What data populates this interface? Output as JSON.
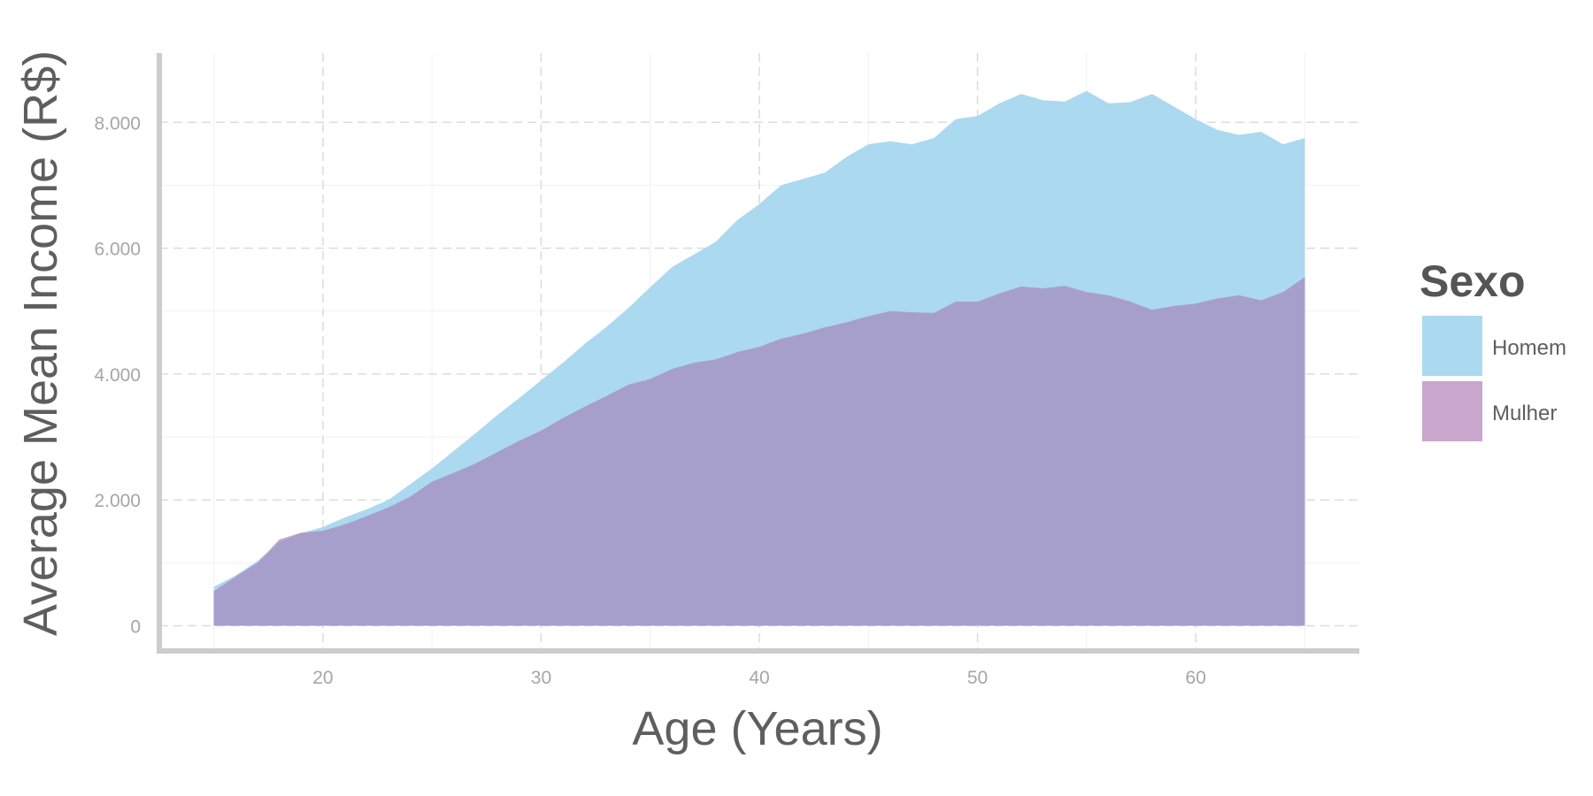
{
  "chart_data": {
    "type": "area",
    "xlabel": "Age (Years)",
    "ylabel": "Average Mean Income (R$)",
    "xlim": [
      12.5,
      67.5
    ],
    "ylim": [
      -400,
      9100
    ],
    "x_ticks": [
      20,
      30,
      40,
      50,
      60
    ],
    "y_ticks": [
      0,
      2000,
      4000,
      6000,
      8000
    ],
    "y_tick_labels": [
      "0",
      "2.000",
      "4.000",
      "6.000",
      "8.000"
    ],
    "grid": true,
    "legend": {
      "title": "Sexo",
      "position": "right"
    },
    "x": [
      15,
      16,
      17,
      18,
      19,
      20,
      21,
      22,
      23,
      24,
      25,
      26,
      27,
      28,
      29,
      30,
      31,
      32,
      33,
      34,
      35,
      36,
      37,
      38,
      39,
      40,
      41,
      42,
      43,
      44,
      45,
      46,
      47,
      48,
      49,
      50,
      51,
      52,
      53,
      54,
      55,
      56,
      57,
      58,
      59,
      60,
      61,
      62,
      63,
      64,
      65
    ],
    "series": [
      {
        "name": "Homem",
        "color": "#abd9ef",
        "values": [
          620,
          800,
          1030,
          1330,
          1470,
          1570,
          1720,
          1850,
          2000,
          2250,
          2500,
          2780,
          3060,
          3350,
          3620,
          3900,
          4180,
          4480,
          4750,
          5050,
          5380,
          5700,
          5900,
          6100,
          6450,
          6700,
          7000,
          7100,
          7200,
          7450,
          7650,
          7700,
          7650,
          7750,
          8050,
          8100,
          8300,
          8450,
          8350,
          8330,
          8500,
          8300,
          8320,
          8450,
          8250,
          8050,
          7880,
          7800,
          7850,
          7650,
          7750
        ]
      },
      {
        "name": "Mulher",
        "color": "#c9a6cc",
        "values": [
          550,
          780,
          1000,
          1370,
          1480,
          1510,
          1610,
          1740,
          1880,
          2050,
          2290,
          2430,
          2580,
          2760,
          2940,
          3100,
          3300,
          3480,
          3650,
          3830,
          3920,
          4080,
          4180,
          4230,
          4350,
          4430,
          4560,
          4640,
          4740,
          4820,
          4920,
          5000,
          4980,
          4970,
          5150,
          5150,
          5280,
          5390,
          5360,
          5400,
          5300,
          5250,
          5150,
          5020,
          5080,
          5120,
          5200,
          5250,
          5170,
          5300,
          5540
        ]
      }
    ],
    "overlap_color": "#a69fcc"
  }
}
